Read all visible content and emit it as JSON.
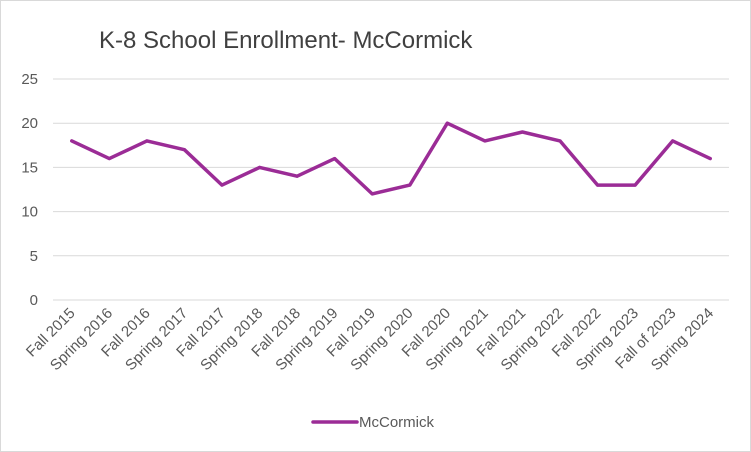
{
  "chart_data": {
    "type": "line",
    "title": "K-8 School Enrollment- McCormick",
    "xlabel": "",
    "ylabel": "",
    "categories": [
      "Fall 2015",
      "Spring 2016",
      "Fall 2016",
      "Spring 2017",
      "Fall 2017",
      "Spring 2018",
      "Fall 2018",
      "Spring 2019",
      "Fall 2019",
      "Spring 2020",
      "Fall 2020",
      "Spring 2021",
      "Fall 2021",
      "Spring 2022",
      "Fall 2022",
      "Spring 2023",
      "Fall of 2023",
      "Spring 2024"
    ],
    "series": [
      {
        "name": "McCormick",
        "color": "#9b2c96",
        "values": [
          18,
          16,
          18,
          17,
          13,
          15,
          14,
          16,
          12,
          13,
          20,
          18,
          19,
          18,
          13,
          13,
          18,
          16
        ]
      }
    ],
    "ylim": [
      0,
      25
    ],
    "yticks": [
      "0",
      "5",
      "10",
      "15",
      "20",
      "25"
    ],
    "grid": true,
    "legend_position": "bottom"
  }
}
